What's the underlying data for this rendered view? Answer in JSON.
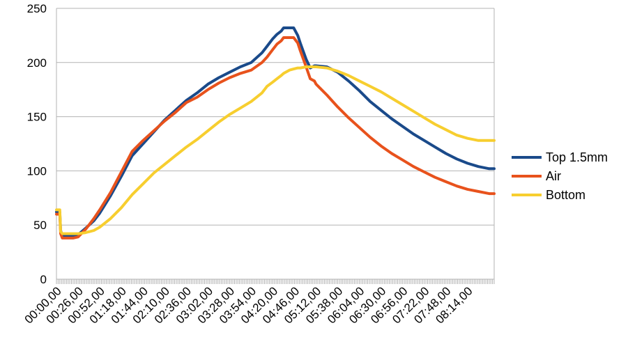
{
  "chart_data": {
    "type": "line",
    "title": "",
    "xlabel": "",
    "ylabel": "",
    "ylim": [
      0,
      250
    ],
    "yticks": [
      0,
      50,
      100,
      150,
      200,
      250
    ],
    "grid": "horizontal",
    "legend_position": "right",
    "x_tick_labels": [
      "00:00,00",
      "00:26,00",
      "00:52,00",
      "01:18,00",
      "01:44,00",
      "02:10,00",
      "02:36,00",
      "03:02,00",
      "03:28,00",
      "03:54,00",
      "04:20,00",
      "04:46,00",
      "05:12,00",
      "05:38,00",
      "06:04,00",
      "06:30,00",
      "06:56,00",
      "07:22,00",
      "07:48,00",
      "08:14,00"
    ],
    "x_range_minutes": [
      0,
      526
    ],
    "series": [
      {
        "name": "Top 1.5mm",
        "color": "#1a4a8a",
        "x": [
          0,
          4,
          5,
          7,
          10,
          15,
          20,
          26,
          35,
          45,
          52,
          65,
          78,
          91,
          104,
          117,
          130,
          143,
          156,
          169,
          182,
          195,
          208,
          221,
          234,
          247,
          253,
          260,
          265,
          270,
          273,
          280,
          285,
          290,
          293,
          300,
          305,
          310,
          312,
          325,
          338,
          351,
          364,
          377,
          390,
          403,
          416,
          429,
          442,
          455,
          468,
          481,
          494,
          507,
          520,
          526
        ],
        "values": [
          62,
          62,
          45,
          40,
          40,
          40,
          40,
          41,
          47,
          54,
          61,
          77,
          95,
          114,
          125,
          136,
          147,
          156,
          165,
          172,
          180,
          186,
          191,
          196,
          200,
          209,
          215,
          222,
          226,
          229,
          232,
          232,
          232,
          225,
          218,
          203,
          195,
          197,
          197,
          196,
          191,
          183,
          174,
          164,
          156,
          148,
          141,
          134,
          128,
          122,
          116,
          111,
          107,
          104,
          102,
          102
        ]
      },
      {
        "name": "Air",
        "color": "#e8521c",
        "x": [
          0,
          4,
          5,
          7,
          10,
          15,
          20,
          26,
          35,
          45,
          52,
          65,
          78,
          91,
          104,
          117,
          130,
          143,
          156,
          169,
          182,
          195,
          208,
          221,
          234,
          247,
          253,
          260,
          265,
          270,
          273,
          280,
          285,
          290,
          293,
          300,
          305,
          310,
          312,
          325,
          338,
          351,
          364,
          377,
          390,
          403,
          416,
          429,
          442,
          455,
          468,
          481,
          494,
          507,
          520,
          526
        ],
        "values": [
          60,
          60,
          42,
          38,
          38,
          38,
          38,
          39,
          46,
          56,
          64,
          80,
          99,
          118,
          128,
          137,
          146,
          154,
          163,
          168,
          175,
          181,
          186,
          190,
          193,
          200,
          205,
          212,
          217,
          220,
          223,
          223,
          223,
          218,
          211,
          196,
          185,
          183,
          180,
          170,
          159,
          149,
          140,
          131,
          123,
          116,
          110,
          104,
          99,
          94,
          90,
          86,
          83,
          81,
          79,
          79
        ]
      },
      {
        "name": "Bottom",
        "color": "#f7ce2f",
        "x": [
          0,
          4,
          5,
          7,
          10,
          15,
          20,
          26,
          35,
          45,
          52,
          65,
          78,
          91,
          104,
          117,
          130,
          143,
          156,
          169,
          182,
          195,
          208,
          221,
          234,
          247,
          253,
          260,
          265,
          270,
          273,
          280,
          285,
          290,
          293,
          300,
          305,
          310,
          312,
          325,
          338,
          351,
          364,
          377,
          390,
          403,
          416,
          429,
          442,
          455,
          468,
          481,
          494,
          507,
          520,
          526
        ],
        "values": [
          64,
          64,
          44,
          42,
          42,
          42,
          42,
          42,
          43,
          45,
          48,
          56,
          66,
          78,
          88,
          98,
          106,
          114,
          122,
          129,
          137,
          145,
          152,
          158,
          164,
          172,
          178,
          182,
          185,
          188,
          190,
          193,
          194,
          195,
          195,
          196,
          196,
          196,
          196,
          195,
          192,
          188,
          183,
          178,
          173,
          167,
          161,
          155,
          149,
          143,
          138,
          133,
          130,
          128,
          128,
          128
        ]
      }
    ]
  }
}
